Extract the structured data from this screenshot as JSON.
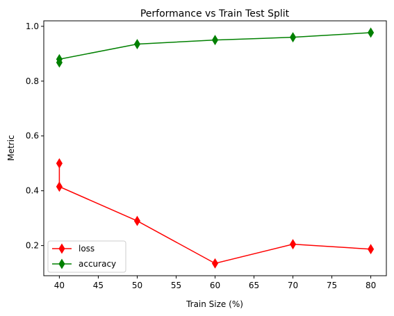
{
  "chart_data": {
    "type": "line",
    "title": "Performance vs Train Test Split",
    "xlabel": "Train Size (%)",
    "ylabel": "Metric",
    "xlim": [
      38,
      82
    ],
    "ylim": [
      0.09,
      1.02
    ],
    "xticks": [
      40,
      45,
      50,
      55,
      60,
      65,
      70,
      75,
      80
    ],
    "yticks": [
      0.2,
      0.4,
      0.6,
      0.8,
      1.0
    ],
    "ytick_labels": [
      "0.2",
      "0.4",
      "0.6",
      "0.8",
      "1.0"
    ],
    "grid": false,
    "legend_position": "lower-left",
    "series": [
      {
        "name": "loss",
        "color": "#ff0000",
        "marker": "thin-diamond",
        "x": [
          40,
          40,
          50,
          60,
          70,
          80
        ],
        "y": [
          0.5,
          0.415,
          0.29,
          0.135,
          0.205,
          0.187
        ]
      },
      {
        "name": "accuracy",
        "color": "#008000",
        "marker": "thin-diamond",
        "x": [
          40,
          40,
          50,
          60,
          70,
          80
        ],
        "y": [
          0.868,
          0.88,
          0.935,
          0.95,
          0.96,
          0.977
        ]
      }
    ]
  }
}
